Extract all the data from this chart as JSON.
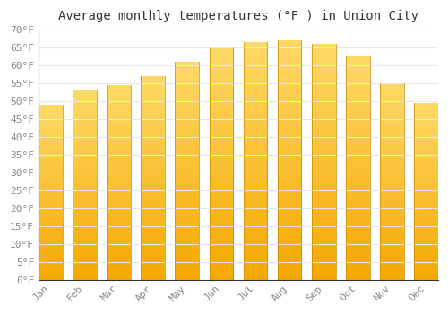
{
  "title": "Average monthly temperatures (°F ) in Union City",
  "months": [
    "Jan",
    "Feb",
    "Mar",
    "Apr",
    "May",
    "Jun",
    "Jul",
    "Aug",
    "Sep",
    "Oct",
    "Nov",
    "Dec"
  ],
  "values": [
    49,
    53,
    54.5,
    57,
    61,
    65,
    66.5,
    67,
    66,
    62.5,
    55,
    49.5
  ],
  "bar_color_bottom": "#F5A800",
  "bar_color_top": "#FFD966",
  "ylim": [
    0,
    70
  ],
  "yticks": [
    0,
    5,
    10,
    15,
    20,
    25,
    30,
    35,
    40,
    45,
    50,
    55,
    60,
    65,
    70
  ],
  "background_color": "#ffffff",
  "grid_color": "#e8e8e8",
  "title_fontsize": 10,
  "tick_fontsize": 8,
  "tick_color": "#888888"
}
